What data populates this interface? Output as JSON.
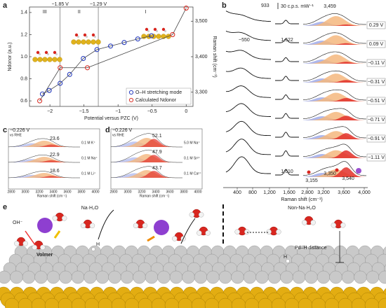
{
  "chart_data": [
    {
      "type": "line",
      "label": "a",
      "xlabel": "Potential versus PZC (V)",
      "ylabel": "Ndonor (a.u.)",
      "y2label": "Raman shift (cm⁻¹)",
      "xlim": [
        -2.3,
        0.1
      ],
      "xticks": [
        {
          "value": -2,
          "label": "−2"
        },
        {
          "value": -1.5,
          "label": "−1.5"
        },
        {
          "value": -1,
          "label": "−1"
        },
        {
          "value": -0.5,
          "label": "−0.5"
        },
        0
      ],
      "ylim": [
        0.55,
        1.45
      ],
      "yticks": [
        0.6,
        0.8,
        {
          "value": 1,
          "label": "1.0"
        },
        1.2,
        1.4
      ],
      "y2lim": [
        3260,
        3540
      ],
      "y2ticks": [
        {
          "value": 3300,
          "label": "3,300"
        },
        {
          "value": 3400,
          "label": "3,400"
        },
        {
          "value": 3500,
          "label": "3,500"
        }
      ],
      "vlines": [
        {
          "value": -1.85,
          "label": "−1.85 V"
        },
        {
          "value": -1.29,
          "label": "−1.29 V"
        }
      ],
      "regions": [
        "III",
        "II",
        "I"
      ],
      "legend": "lower right",
      "series": [
        {
          "name": "O–H stretching mode",
          "color": "#2a3fbf",
          "axis": "y2",
          "x": [
            -2.11,
            -2.01,
            -1.85,
            -1.71,
            -1.51,
            -1.31,
            -1.11,
            -0.91,
            -0.71,
            -0.51
          ],
          "values": [
            3295,
            3305,
            3325,
            3350,
            3395,
            3420,
            3430,
            3440,
            3450,
            3459
          ]
        },
        {
          "name": "Calculated Ndonor",
          "color": "#d9342b",
          "x": [
            -2.15,
            -1.85,
            -1.45,
            -0.2,
            0
          ],
          "values": [
            0.6,
            0.9,
            0.9,
            1.2,
            1.44
          ]
        }
      ]
    }
  ],
  "panels": {
    "b": {
      "label": "b",
      "scale": "30 c.p.s. mW⁻¹",
      "peak_low": "933",
      "broad": "~550",
      "peak_mid": "1,622",
      "peak_high": "3,459",
      "potentials": [
        "0.29 V",
        "0.09 V",
        "−0.11 V",
        "−0.31 V",
        "−0.51 V",
        "−0.71 V",
        "−0.91 V",
        "−1.11 V"
      ],
      "bottom_peaks": [
        "1,610",
        "3,155",
        "3,350",
        "3,540"
      ],
      "xticks": [
        "400",
        "800",
        "1,200",
        "1,600",
        "2,800",
        "3,200",
        "3,600",
        "4,000"
      ],
      "xlabel": "Raman shift (cm⁻¹)"
    },
    "c": {
      "label": "c",
      "potential": "−0.226 V",
      "ref": "vs RHE",
      "areas": [
        "23.6",
        "22.9",
        "18.6"
      ],
      "electrolytes": [
        "0.1 M K⁺",
        "0.1 M Na⁺",
        "0.1 M Li⁺"
      ],
      "xticks": [
        "2800",
        "3000",
        "3200",
        "3400",
        "3600",
        "3800",
        "4000"
      ],
      "xlabel": "Raman shift (cm⁻¹)"
    },
    "d": {
      "label": "d",
      "potential": "−0.226 V",
      "ref": "vs RHE",
      "areas": [
        "52.1",
        "47.9",
        "43.7"
      ],
      "electrolytes": [
        "5.0 M Na⁺",
        "0.1 M Sr²⁺",
        "0.1 M Ca²⁺"
      ],
      "xticks": [
        "2800",
        "3000",
        "3200",
        "3400",
        "3600",
        "3800",
        "4000"
      ],
      "xlabel": "Raman shift (cm⁻¹)"
    },
    "e": {
      "label": "e",
      "oh": "OH⁻",
      "na_title": "Na·H₂O",
      "volmer": "Volmer",
      "h1": "H",
      "non_title": "Non-Na·H₂O",
      "distance": "Pd–H distance",
      "h2": "H"
    }
  }
}
